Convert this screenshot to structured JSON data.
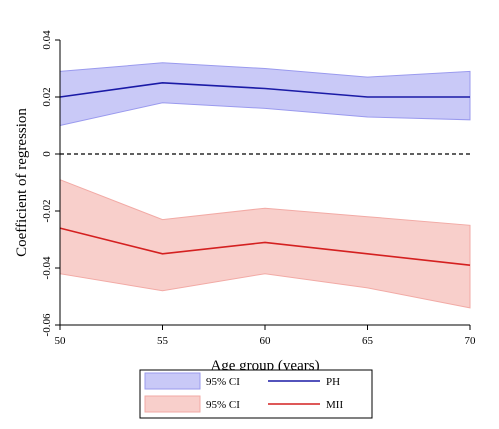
{
  "chart_data": {
    "type": "line",
    "title": "",
    "xlabel": "Age group (years)",
    "ylabel": "Coefficient of regression",
    "x": [
      50,
      55,
      60,
      65,
      70
    ],
    "xlim": [
      50,
      70
    ],
    "ylim": [
      -0.06,
      0.04
    ],
    "xticks": [
      50,
      55,
      60,
      65,
      70
    ],
    "xtick_labels": [
      "50",
      "55",
      "60",
      "65",
      "70"
    ],
    "yticks": [
      -0.06,
      -0.04,
      -0.02,
      0,
      0.02,
      0.04
    ],
    "ytick_labels": [
      "-0.06",
      "-0.04",
      "-0.02",
      "0",
      "0.02",
      "0.04"
    ],
    "grid": false,
    "reference_line": {
      "y": 0,
      "style": "dashed"
    },
    "legend_position": "bottom",
    "series": [
      {
        "name": "PH",
        "values": [
          0.02,
          0.025,
          0.023,
          0.02,
          0.02
        ],
        "line_color": "#1a1aa6"
      },
      {
        "name": "MII",
        "values": [
          -0.026,
          -0.035,
          -0.031,
          -0.035,
          -0.039
        ],
        "line_color": "#d42020"
      }
    ],
    "bands": [
      {
        "name": "95% CI",
        "lower": [
          0.01,
          0.018,
          0.016,
          0.013,
          0.012
        ],
        "upper": [
          0.029,
          0.032,
          0.03,
          0.027,
          0.029
        ],
        "fill": "#c9c9f7",
        "stroke": "#9a9aee"
      },
      {
        "name": "95% CI",
        "lower": [
          -0.042,
          -0.048,
          -0.042,
          -0.047,
          -0.054
        ],
        "upper": [
          -0.009,
          -0.023,
          -0.019,
          -0.022,
          -0.025
        ],
        "fill": "#f8cfcb",
        "stroke": "#f2aaa5"
      }
    ]
  }
}
